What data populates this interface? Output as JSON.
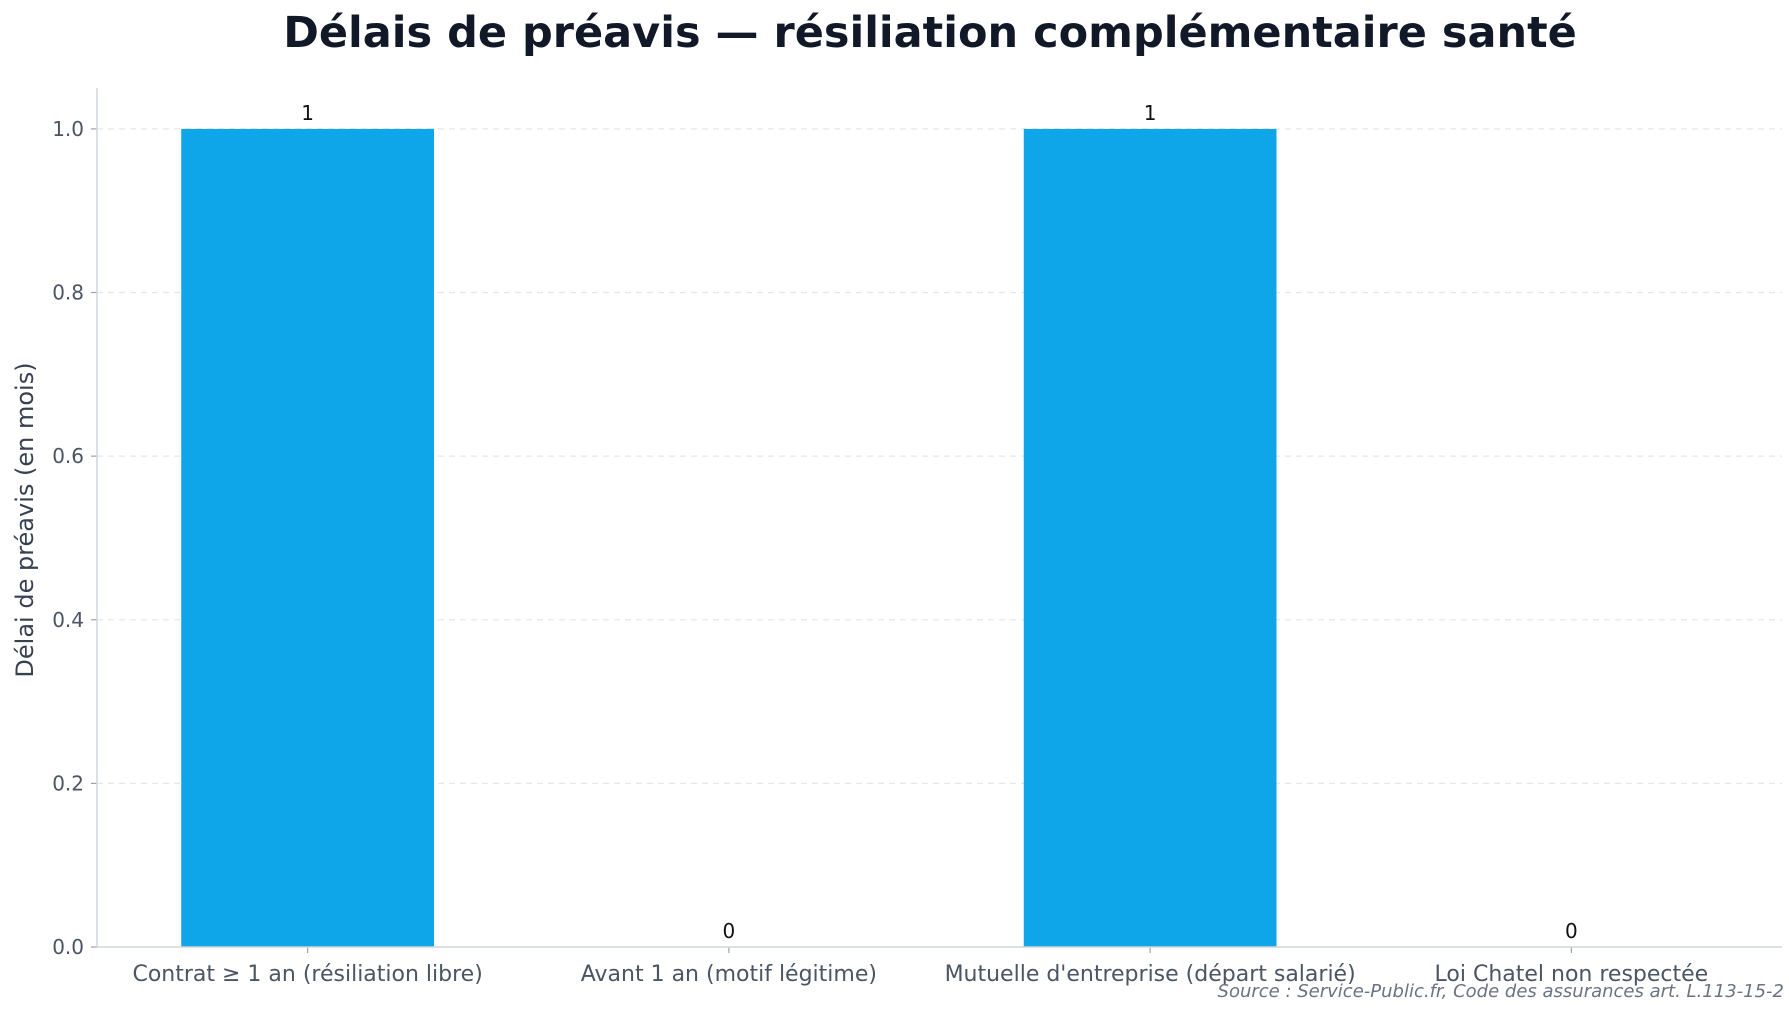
{
  "chart_data": {
    "type": "bar",
    "title": "Délais de préavis — résiliation complémentaire santé",
    "xlabel": "",
    "ylabel": "Délai de préavis (en mois)",
    "categories": [
      "Contrat ≥ 1 an (résiliation libre)",
      "Avant 1 an (motif légitime)",
      "Mutuelle d'entreprise (départ salarié)",
      "Loi Chatel non respectée"
    ],
    "values": [
      1,
      0,
      1,
      0
    ],
    "data_labels": [
      "1",
      "0",
      "1",
      "0"
    ],
    "ylim": [
      0,
      1.05
    ],
    "yticks": [
      0.0,
      0.2,
      0.4,
      0.6,
      0.8,
      1.0
    ],
    "ytick_labels": [
      "0.0",
      "0.2",
      "0.4",
      "0.6",
      "0.8",
      "1.0"
    ],
    "grid": "y-dashed",
    "legend": "none",
    "bar_color": "#0ea5e9",
    "source": "Source : Service-Public.fr, Code des assurances art. L.113-15-2"
  }
}
